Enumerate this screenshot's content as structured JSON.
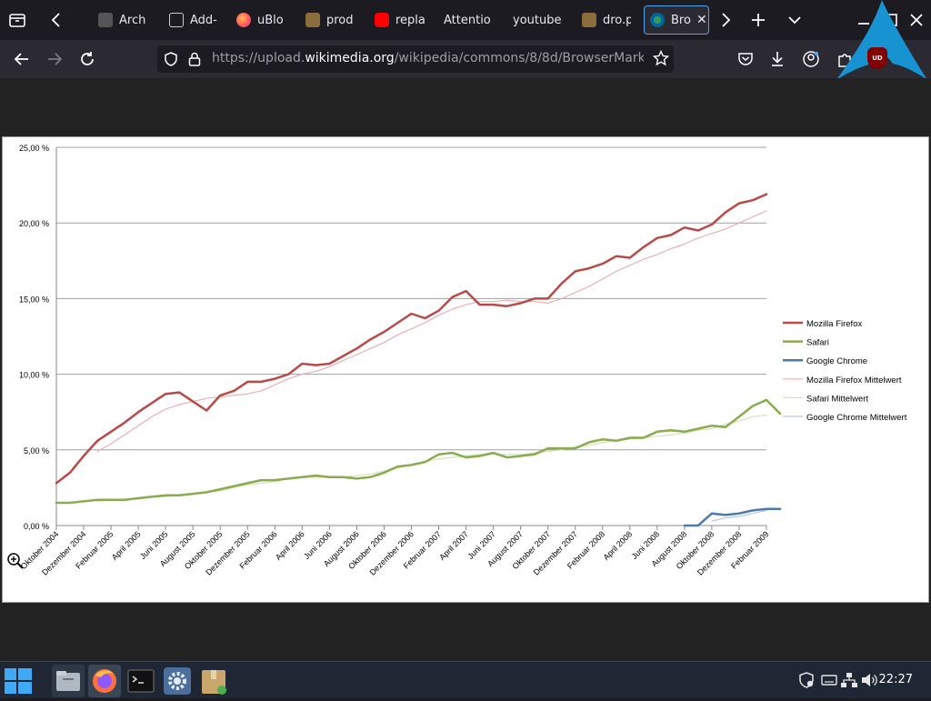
{
  "browser": {
    "tabs": [
      {
        "label": "Arch"
      },
      {
        "label": "Add-"
      },
      {
        "label": "uBlo"
      },
      {
        "label": "prod"
      },
      {
        "label": "repla"
      },
      {
        "label": "Attentio"
      },
      {
        "label": "youtube"
      },
      {
        "label": "dro.p"
      },
      {
        "label": "Bro"
      }
    ],
    "url": {
      "prefix": "https://upload.",
      "domain": "wikimedia.org",
      "path": "/wikipedia/commons/8/8d/BrowserMarketSha"
    },
    "extension_badge": "UD"
  },
  "chart_data": {
    "type": "line",
    "ylim": [
      0,
      25
    ],
    "y_ticks": [
      "0,00 %",
      "5,00 %",
      "10,00 %",
      "15,00 %",
      "20,00 %",
      "25,00 %"
    ],
    "x_labels": [
      "Oktober 2004",
      "Dezember 2004",
      "Februar 2005",
      "April 2005",
      "Juni 2005",
      "August 2005",
      "Oktober 2005",
      "Dezember 2005",
      "Februar 2006",
      "April 2006",
      "Juni 2006",
      "August 2006",
      "Oktober 2006",
      "Dezember 2006",
      "Februar 2007",
      "April 2007",
      "Juni 2007",
      "August 2007",
      "Oktober 2007",
      "Dezember 2007",
      "Februar 2008",
      "April 2008",
      "Juni 2008",
      "August 2008",
      "Oktober 2008",
      "Dezember 2008",
      "Februar 2009"
    ],
    "series": [
      {
        "name": "Mozilla Firefox",
        "color": "#b94a48",
        "width": 2.5,
        "start": 0,
        "values": [
          2.8,
          3.5,
          4.6,
          5.6,
          6.2,
          6.8,
          7.5,
          8.1,
          8.7,
          8.8,
          8.2,
          7.6,
          8.6,
          8.9,
          9.5,
          9.5,
          9.7,
          10.0,
          10.7,
          10.6,
          10.7,
          11.2,
          11.7,
          12.3,
          12.8,
          13.4,
          14.0,
          13.7,
          14.2,
          15.1,
          15.5,
          14.6,
          14.6,
          14.5,
          14.7,
          15.0,
          15.0,
          16.0,
          16.8,
          17.0,
          17.3,
          17.8,
          17.7,
          18.4,
          19.0,
          19.2,
          19.7,
          19.5,
          19.9,
          20.7,
          21.3,
          21.5,
          21.9
        ]
      },
      {
        "name": "Safari",
        "color": "#8aab4e",
        "width": 2.5,
        "start": 0,
        "values": [
          1.5,
          1.5,
          1.6,
          1.7,
          1.7,
          1.7,
          1.8,
          1.9,
          2.0,
          2.0,
          2.1,
          2.2,
          2.4,
          2.6,
          2.8,
          3.0,
          3.0,
          3.1,
          3.2,
          3.3,
          3.2,
          3.2,
          3.1,
          3.2,
          3.5,
          3.9,
          4.0,
          4.2,
          4.7,
          4.8,
          4.5,
          4.6,
          4.8,
          4.5,
          4.6,
          4.7,
          5.1,
          5.1,
          5.1,
          5.5,
          5.7,
          5.6,
          5.8,
          5.8,
          6.2,
          6.3,
          6.2,
          6.4,
          6.6,
          6.5,
          7.2,
          7.9,
          8.3,
          7.4
        ]
      },
      {
        "name": "Google Chrome",
        "color": "#4a7aaf",
        "width": 2.5,
        "start": 46,
        "values": [
          0.0,
          0.0,
          0.8,
          0.7,
          0.8,
          1.0,
          1.1,
          1.1
        ]
      },
      {
        "name": "Mozilla Firefox Mittelwert",
        "color": "#e8b0b4",
        "width": 1.2,
        "start": 3,
        "values": [
          4.9,
          5.4,
          6.0,
          6.6,
          7.2,
          7.7,
          8.0,
          8.2,
          8.4,
          8.5,
          8.6,
          8.7,
          8.9,
          9.3,
          9.7,
          10.0,
          10.2,
          10.5,
          10.9,
          11.3,
          11.7,
          12.1,
          12.6,
          13.0,
          13.4,
          13.9,
          14.3,
          14.6,
          14.8,
          14.8,
          14.9,
          14.8,
          14.8,
          14.7,
          15.0,
          15.4,
          15.8,
          16.3,
          16.8,
          17.2,
          17.6,
          17.9,
          18.3,
          18.6,
          19.0,
          19.3,
          19.6,
          20.0,
          20.4,
          20.8
        ]
      },
      {
        "name": "Safari Mittelwert",
        "color": "#d6e3b8",
        "width": 1.2,
        "start": 3,
        "values": [
          1.6,
          1.7,
          1.7,
          1.8,
          1.9,
          1.9,
          2.0,
          2.1,
          2.2,
          2.3,
          2.5,
          2.7,
          2.8,
          2.9,
          3.1,
          3.2,
          3.2,
          3.2,
          3.2,
          3.3,
          3.4,
          3.6,
          3.8,
          4.0,
          4.2,
          4.4,
          4.5,
          4.6,
          4.7,
          4.7,
          4.7,
          4.7,
          4.8,
          4.9,
          5.0,
          5.2,
          5.3,
          5.5,
          5.6,
          5.7,
          5.8,
          5.9,
          6.0,
          6.1,
          6.3,
          6.4,
          6.7,
          6.9,
          7.2,
          7.3
        ]
      },
      {
        "name": "Google Chrome  Mittelwert",
        "color": "#b7c7dd",
        "width": 1.2,
        "start": 48,
        "values": [
          0.3,
          0.5,
          0.6,
          0.8,
          1.0
        ]
      }
    ]
  },
  "taskbar": {
    "clock": "22:27"
  }
}
